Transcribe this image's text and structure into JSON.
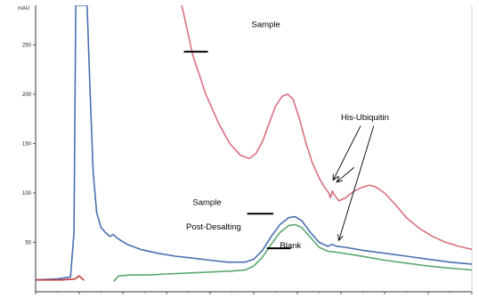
{
  "chart_data": {
    "type": "line",
    "title": "",
    "xlabel": "",
    "ylabel": "",
    "y_unit_label": "mAU",
    "xlim": [
      0,
      10
    ],
    "ylim": [
      0,
      290
    ],
    "y_ticks": [
      50,
      100,
      150,
      200,
      250
    ],
    "x_ticks": [
      0,
      1,
      2,
      3,
      4,
      5,
      6,
      7,
      8,
      9,
      10
    ],
    "x_tick_labels_legible": false,
    "grid": false,
    "legend": "none",
    "series": [
      {
        "color": "#d9707f",
        "x": [
          3.35,
          3.6,
          3.9,
          4.2,
          4.45,
          4.7,
          4.9,
          5.05,
          5.2,
          5.35,
          5.5,
          5.65,
          5.78,
          5.9,
          6.05,
          6.2,
          6.35,
          6.5,
          6.62,
          6.72,
          6.76,
          6.8,
          6.85,
          6.95,
          7.1,
          7.3,
          7.5,
          7.65,
          7.8,
          8.0,
          8.25,
          8.5,
          8.8,
          9.1,
          9.4,
          9.7,
          10.0
        ],
        "y": [
          290,
          240,
          200,
          170,
          150,
          138,
          135,
          140,
          152,
          170,
          188,
          198,
          200,
          195,
          175,
          150,
          130,
          115,
          106,
          100,
          95,
          102,
          98,
          92,
          95,
          102,
          106,
          108,
          106,
          100,
          88,
          75,
          64,
          56,
          50,
          46,
          43
        ]
      },
      {
        "color": "#4a6fb0",
        "x": [
          0.0,
          0.5,
          0.8,
          0.88,
          0.92,
          0.98,
          1.05,
          1.12,
          1.18,
          1.25,
          1.32,
          1.4,
          1.5,
          1.6,
          1.7,
          1.78,
          1.85,
          1.95,
          2.1,
          2.4,
          2.8,
          3.2,
          3.6,
          4.0,
          4.4,
          4.8,
          5.0,
          5.2,
          5.4,
          5.6,
          5.8,
          5.95,
          6.1,
          6.3,
          6.5,
          6.7,
          6.8,
          6.9,
          7.1,
          7.5,
          8.0,
          8.5,
          9.0,
          9.5,
          10.0
        ],
        "y": [
          12,
          13,
          15,
          60,
          290,
          290,
          290,
          290,
          290,
          200,
          120,
          80,
          65,
          60,
          56,
          58,
          55,
          52,
          48,
          43,
          39,
          36,
          34,
          32,
          30,
          30,
          33,
          42,
          56,
          68,
          75,
          76,
          72,
          60,
          50,
          46,
          48,
          46,
          45,
          42,
          39,
          36,
          33,
          30,
          28
        ]
      },
      {
        "color": "#5aa870",
        "x": [
          1.8,
          1.9,
          2.2,
          2.6,
          3.0,
          3.5,
          4.0,
          4.5,
          4.8,
          5.0,
          5.2,
          5.4,
          5.6,
          5.8,
          5.95,
          6.1,
          6.3,
          6.5,
          6.7,
          6.9,
          7.2,
          7.6,
          8.0,
          8.5,
          9.0,
          9.5,
          10.0
        ],
        "y": [
          11,
          16,
          17,
          17,
          18,
          19,
          20,
          21,
          22,
          26,
          35,
          48,
          60,
          67,
          68,
          65,
          55,
          45,
          41,
          40,
          38,
          35,
          32,
          29,
          26,
          24,
          22
        ]
      },
      {
        "color": "#c23b3b",
        "x": [
          0.0,
          0.6,
          0.9,
          1.0,
          1.1
        ],
        "y": [
          12,
          12,
          13,
          16,
          12
        ]
      }
    ],
    "annotations": [
      {
        "text": "Sample",
        "x": 4.95,
        "y": 268
      },
      {
        "text": "His-Ubiquitin",
        "x": 7.0,
        "y": 174
      },
      {
        "text": "Sample",
        "x": 3.6,
        "y": 88
      },
      {
        "text": "Post-Desalting",
        "x": 3.45,
        "y": 63
      },
      {
        "text": "Blank",
        "x": 5.6,
        "y": 44
      }
    ],
    "marker_lines": [
      {
        "x": [
          3.4,
          3.95
        ],
        "y": [
          243,
          243
        ]
      },
      {
        "x": [
          4.85,
          5.45
        ],
        "y": [
          79,
          79
        ]
      },
      {
        "x": [
          5.3,
          5.85
        ],
        "y": [
          44,
          44
        ]
      }
    ],
    "arrows": [
      {
        "from": [
          7.45,
          168
        ],
        "to": [
          6.82,
          113
        ]
      },
      {
        "from": [
          7.3,
          126
        ],
        "to": [
          6.9,
          111
        ]
      },
      {
        "from": [
          7.75,
          168
        ],
        "to": [
          6.95,
          52
        ]
      }
    ]
  }
}
